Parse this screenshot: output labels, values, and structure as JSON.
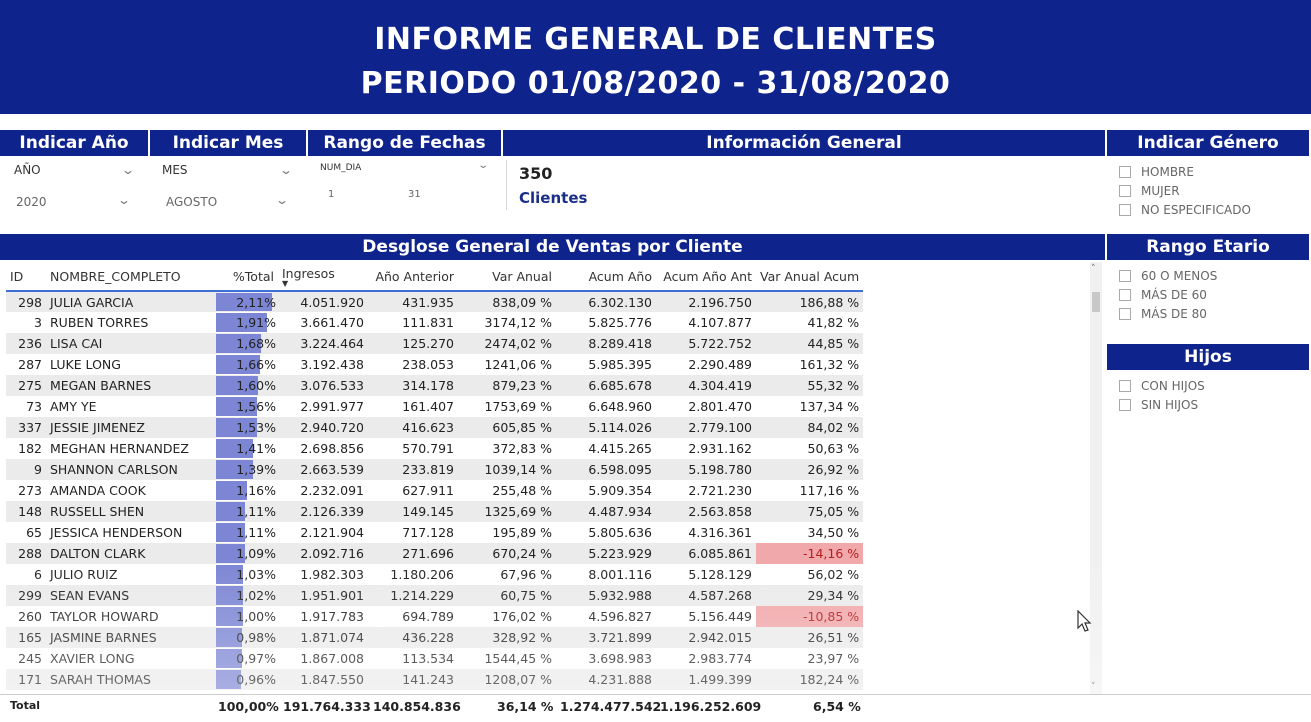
{
  "banner": {
    "title": "INFORME GENERAL DE CLIENTES",
    "period": "PERIODO 01/08/2020 - 31/08/2020"
  },
  "filters": {
    "year": {
      "header": "Indicar Año",
      "label": "AÑO",
      "value": "2020"
    },
    "month": {
      "header": "Indicar Mes",
      "label": "MES",
      "value": "AGOSTO"
    },
    "dates": {
      "header": "Rango de Fechas",
      "label": "NUM_DIA",
      "from": "1",
      "to": "31"
    }
  },
  "info": {
    "header": "Información General",
    "count": "350",
    "label": "Clientes"
  },
  "gender": {
    "header": "Indicar Género",
    "options": [
      "HOMBRE",
      "MUJER",
      "NO ESPECIFICADO"
    ]
  },
  "age": {
    "header": "Rango Etario",
    "options": [
      "60 O MENOS",
      "MÁS DE 60",
      "MÁS DE 80"
    ]
  },
  "children": {
    "header": "Hijos",
    "options": [
      "CON HIJOS",
      "SIN HIJOS"
    ]
  },
  "table": {
    "title": "Desglose General de Ventas por Cliente",
    "columns": [
      "ID",
      "NOMBRE_COMPLETO",
      "%Total",
      "Ingresos",
      "Año Anterior",
      "Var Anual",
      "Acum Año",
      "Acum Año Ant",
      "Var Anual Acum"
    ],
    "rows": [
      [
        "298",
        "JULIA GARCIA",
        "2,11%",
        "4.051.920",
        "431.935",
        "838,09 %",
        "6.302.130",
        "2.196.750",
        "186,88 %"
      ],
      [
        "3",
        "RUBEN TORRES",
        "1,91%",
        "3.661.470",
        "111.831",
        "3174,12 %",
        "5.825.776",
        "4.107.877",
        "41,82 %"
      ],
      [
        "236",
        "LISA CAI",
        "1,68%",
        "3.224.464",
        "125.270",
        "2474,02 %",
        "8.289.418",
        "5.722.752",
        "44,85 %"
      ],
      [
        "287",
        "LUKE LONG",
        "1,66%",
        "3.192.438",
        "238.053",
        "1241,06 %",
        "5.985.395",
        "2.290.489",
        "161,32 %"
      ],
      [
        "275",
        "MEGAN BARNES",
        "1,60%",
        "3.076.533",
        "314.178",
        "879,23 %",
        "6.685.678",
        "4.304.419",
        "55,32 %"
      ],
      [
        "73",
        "AMY YE",
        "1,56%",
        "2.991.977",
        "161.407",
        "1753,69 %",
        "6.648.960",
        "2.801.470",
        "137,34 %"
      ],
      [
        "337",
        "JESSIE JIMENEZ",
        "1,53%",
        "2.940.720",
        "416.623",
        "605,85 %",
        "5.114.026",
        "2.779.100",
        "84,02 %"
      ],
      [
        "182",
        "MEGHAN HERNANDEZ",
        "1,41%",
        "2.698.856",
        "570.791",
        "372,83 %",
        "4.415.265",
        "2.931.162",
        "50,63 %"
      ],
      [
        "9",
        "SHANNON CARLSON",
        "1,39%",
        "2.663.539",
        "233.819",
        "1039,14 %",
        "6.598.095",
        "5.198.780",
        "26,92 %"
      ],
      [
        "273",
        "AMANDA COOK",
        "1,16%",
        "2.232.091",
        "627.911",
        "255,48 %",
        "5.909.354",
        "2.721.230",
        "117,16 %"
      ],
      [
        "148",
        "RUSSELL SHEN",
        "1,11%",
        "2.126.339",
        "149.145",
        "1325,69 %",
        "4.487.934",
        "2.563.858",
        "75,05 %"
      ],
      [
        "65",
        "JESSICA HENDERSON",
        "1,11%",
        "2.121.904",
        "717.128",
        "195,89 %",
        "5.805.636",
        "4.316.361",
        "34,50 %"
      ],
      [
        "288",
        "DALTON CLARK",
        "1,09%",
        "2.092.716",
        "271.696",
        "670,24 %",
        "5.223.929",
        "6.085.861",
        "-14,16 %"
      ],
      [
        "6",
        "JULIO RUIZ",
        "1,03%",
        "1.982.303",
        "1.180.206",
        "67,96 %",
        "8.001.116",
        "5.128.129",
        "56,02 %"
      ],
      [
        "299",
        "SEAN EVANS",
        "1,02%",
        "1.951.901",
        "1.214.229",
        "60,75 %",
        "5.932.988",
        "4.587.268",
        "29,34 %"
      ],
      [
        "260",
        "TAYLOR HOWARD",
        "1,00%",
        "1.917.783",
        "694.789",
        "176,02 %",
        "4.596.827",
        "5.156.449",
        "-10,85 %"
      ],
      [
        "165",
        "JASMINE BARNES",
        "0,98%",
        "1.871.074",
        "436.228",
        "328,92 %",
        "3.721.899",
        "2.942.015",
        "26,51 %"
      ],
      [
        "245",
        "XAVIER LONG",
        "0,97%",
        "1.867.008",
        "113.534",
        "1544,45 %",
        "3.698.983",
        "2.983.774",
        "23,97 %"
      ],
      [
        "171",
        "SARAH THOMAS",
        "0,96%",
        "1.847.550",
        "141.243",
        "1208,07 %",
        "4.231.888",
        "1.499.399",
        "182,24 %"
      ]
    ],
    "pct_fraction": [
      0.0211,
      0.0191,
      0.0168,
      0.0166,
      0.016,
      0.0156,
      0.0153,
      0.0141,
      0.0139,
      0.0116,
      0.0111,
      0.0111,
      0.0109,
      0.0103,
      0.0102,
      0.01,
      0.0098,
      0.0097,
      0.0096
    ],
    "total": {
      "label": "Total",
      "pct": "100,00%",
      "ingresos": "191.764.333",
      "anterior": "140.854.836",
      "var": "36,14 %",
      "acum": "1.274.477.542",
      "acum_ant": "1.196.252.609",
      "var_acum": "6,54 %"
    }
  },
  "colors": {
    "banner": "#0f238c",
    "bar": "#7d86d4",
    "negative_bg": "#f1a8ab"
  }
}
